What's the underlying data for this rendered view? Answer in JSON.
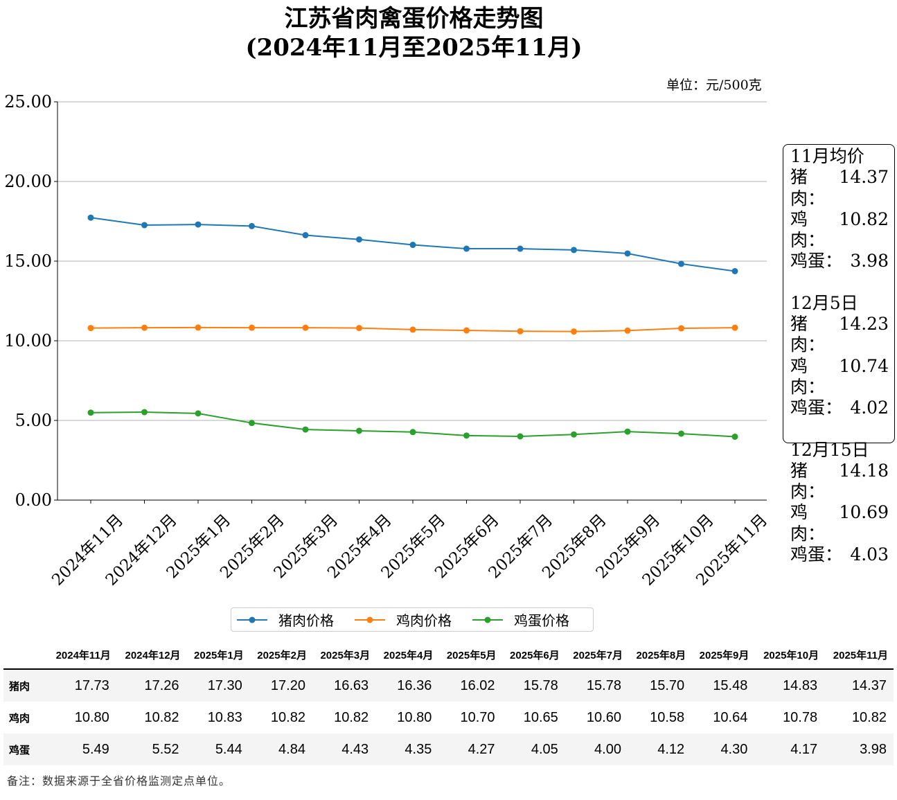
{
  "title_line1": "江苏省肉禽蛋价格走势图",
  "title_line2": "(2024年11月至2025年11月)",
  "unit": "单位：元/500克",
  "chart_data": {
    "type": "line",
    "title": "江苏省肉禽蛋价格走势图 (2024年11月至2025年11月)",
    "xlabel": "",
    "ylabel": "",
    "ylim": [
      0,
      25
    ],
    "yticks": [
      "0.00",
      "5.00",
      "10.00",
      "15.00",
      "20.00",
      "25.00"
    ],
    "grid": "horizontal",
    "legend": "bottom",
    "categories": [
      "2024年11月",
      "2024年12月",
      "2025年1月",
      "2025年2月",
      "2025年3月",
      "2025年4月",
      "2025年5月",
      "2025年6月",
      "2025年7月",
      "2025年8月",
      "2025年9月",
      "2025年10月",
      "2025年11月"
    ],
    "series": [
      {
        "name": "猪肉价格",
        "color": "#1f77b4",
        "values": [
          17.73,
          17.26,
          17.3,
          17.2,
          16.63,
          16.36,
          16.02,
          15.78,
          15.78,
          15.7,
          15.48,
          14.83,
          14.37
        ]
      },
      {
        "name": "鸡肉价格",
        "color": "#ff7f0e",
        "values": [
          10.8,
          10.82,
          10.83,
          10.82,
          10.82,
          10.8,
          10.7,
          10.65,
          10.6,
          10.58,
          10.64,
          10.78,
          10.82
        ]
      },
      {
        "name": "鸡蛋价格",
        "color": "#2ca02c",
        "values": [
          5.49,
          5.52,
          5.44,
          4.84,
          4.43,
          4.35,
          4.27,
          4.05,
          4.0,
          4.12,
          4.3,
          4.17,
          3.98
        ]
      }
    ]
  },
  "infobox": [
    {
      "heading": "11月均价",
      "rows": [
        [
          "猪肉：",
          "14.37"
        ],
        [
          "鸡肉：",
          "10.82"
        ],
        [
          "鸡蛋：",
          "3.98"
        ]
      ]
    },
    {
      "heading": "12月5日",
      "rows": [
        [
          "猪肉：",
          "14.23"
        ],
        [
          "鸡肉：",
          "10.74"
        ],
        [
          "鸡蛋：",
          "4.02"
        ]
      ]
    },
    {
      "heading": "12月15日",
      "rows": [
        [
          "猪肉：",
          "14.18"
        ],
        [
          "鸡肉：",
          "10.69"
        ],
        [
          "鸡蛋：",
          "4.03"
        ]
      ]
    }
  ],
  "table": {
    "headers": [
      "2024年11月",
      "2024年12月",
      "2025年1月",
      "2025年2月",
      "2025年3月",
      "2025年4月",
      "2025年5月",
      "2025年6月",
      "2025年7月",
      "2025年8月",
      "2025年9月",
      "2025年10月",
      "2025年11月"
    ],
    "rows": [
      {
        "label": "猪肉",
        "values": [
          "17.73",
          "17.26",
          "17.30",
          "17.20",
          "16.63",
          "16.36",
          "16.02",
          "15.78",
          "15.78",
          "15.70",
          "15.48",
          "14.83",
          "14.37"
        ]
      },
      {
        "label": "鸡肉",
        "values": [
          "10.80",
          "10.82",
          "10.83",
          "10.82",
          "10.82",
          "10.80",
          "10.70",
          "10.65",
          "10.60",
          "10.58",
          "10.64",
          "10.78",
          "10.82"
        ]
      },
      {
        "label": "鸡蛋",
        "values": [
          "5.49",
          "5.52",
          "5.44",
          "4.84",
          "4.43",
          "4.35",
          "4.27",
          "4.05",
          "4.00",
          "4.12",
          "4.30",
          "4.17",
          "3.98"
        ]
      }
    ]
  },
  "note": "备注：数据来源于全省价格监测定点单位。"
}
